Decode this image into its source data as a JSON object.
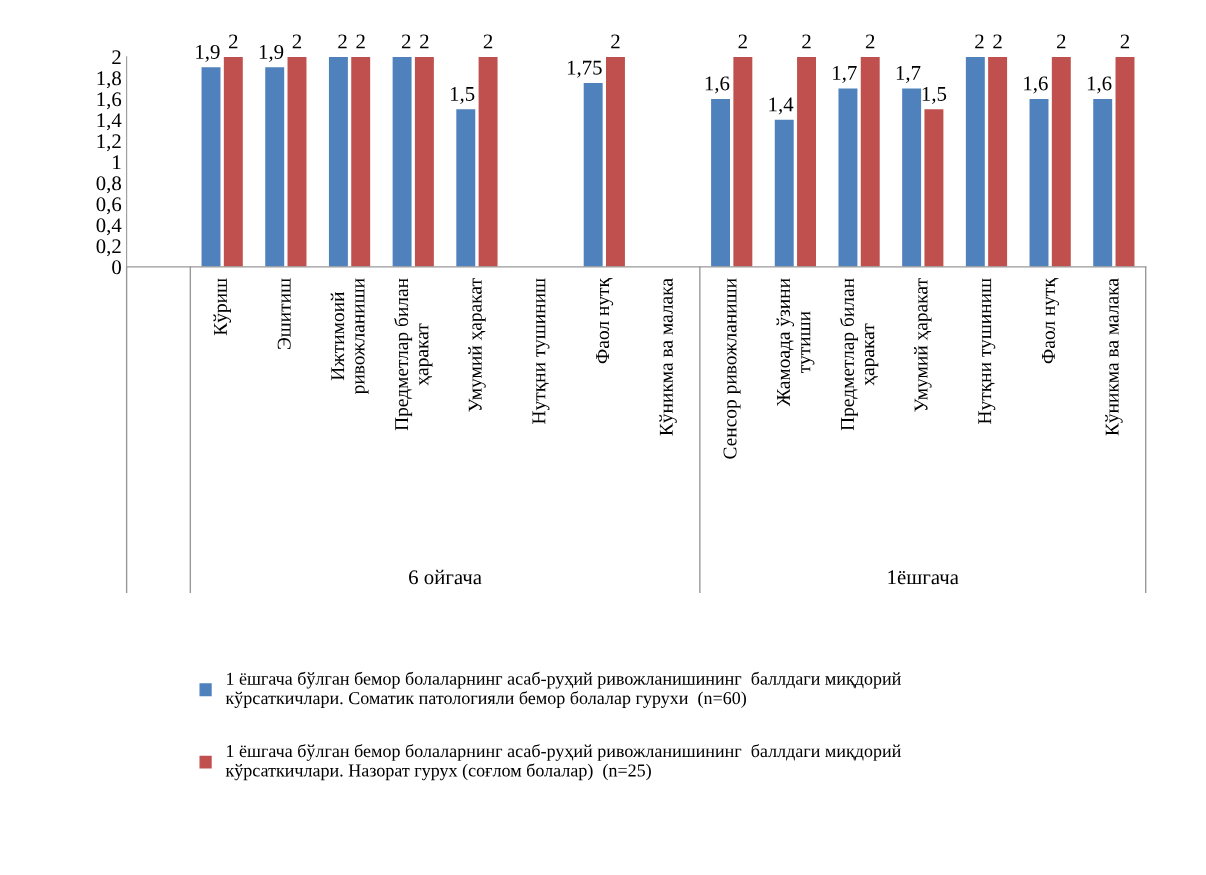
{
  "chart_data": {
    "type": "bar",
    "categories": [
      null,
      "Кўриш",
      "Эшитиш",
      "Ижтимоий\nривожланиши",
      "Предметлар билан\nҳаракат",
      "Умумий ҳаракат",
      "Нутқни тушиниш",
      "Фаол нутқ",
      "Кўникма ва малака",
      "Сенсор ривожланиши",
      "Жамоада ўзини\nтутиши",
      "Предметлар билан\nҳаракат",
      "Умумий ҳаракат",
      "Нутқни тушиниш",
      "Фаол нутқ",
      "Кўникма ва малака"
    ],
    "series": [
      {
        "name": "1 ёшгача бўлган бемор болаларнинг асаб-руҳий ривожланишининг  баллдаги миқдорий\nкўрсаткичлари. Соматик патологияли бемор болалар гурухи  (n=60)",
        "color": "#4f81bd",
        "values": [
          null,
          1.9,
          1.9,
          2,
          2,
          1.5,
          null,
          1.75,
          null,
          1.6,
          1.4,
          1.7,
          1.7,
          2,
          1.6,
          1.6
        ],
        "value_labels": [
          null,
          "1,9",
          "1,9",
          "2",
          "2",
          "1,5",
          null,
          "1,75",
          null,
          "1,6",
          "1,4",
          "1,7",
          "1,7",
          "2",
          "1,6",
          "1,6"
        ]
      },
      {
        "name": "1 ёшгача бўлган бемор болаларнинг асаб-руҳий ривожланишининг  баллдаги миқдорий\nкўрсаткичлари. Назорат гурух (соғлом болалар)  (n=25)",
        "color": "#c0504d",
        "values": [
          null,
          2,
          2,
          2,
          2,
          2,
          null,
          2,
          null,
          2,
          2,
          2,
          1.5,
          2,
          2,
          2
        ],
        "value_labels": [
          null,
          "2",
          "2",
          "2",
          "2",
          "2",
          null,
          "2",
          null,
          "2",
          "2",
          "2",
          "1,5",
          "2",
          "2",
          "2"
        ]
      }
    ],
    "annotations": [
      "6 ойгача",
      "1ёшгача"
    ],
    "ylim": [
      0,
      2
    ],
    "yticks": [
      0,
      {
        "value": 0.2,
        "label": "0,2"
      },
      {
        "value": 0.4,
        "label": "0,4"
      },
      {
        "value": 0.6,
        "label": "0,6"
      },
      {
        "value": 0.8,
        "label": "0,8"
      },
      1,
      {
        "value": 1.2,
        "label": "1,2"
      },
      {
        "value": 1.4,
        "label": "1,4"
      },
      {
        "value": 1.6,
        "label": "1,6"
      },
      {
        "value": 1.8,
        "label": "1,8"
      },
      2
    ],
    "grid": false,
    "legend": "bottom"
  }
}
